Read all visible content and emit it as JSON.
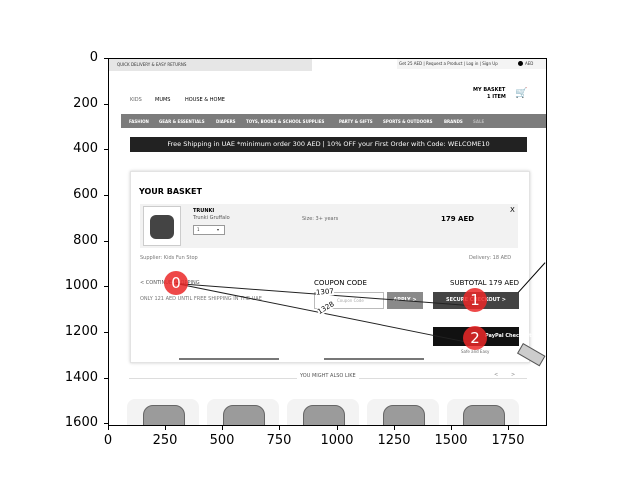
{
  "axes": {
    "y_ticks": [
      "0",
      "200",
      "400",
      "600",
      "800",
      "1000",
      "1200",
      "1400",
      "1600"
    ],
    "x_ticks": [
      "0",
      "250",
      "500",
      "750",
      "1000",
      "1250",
      "1500",
      "1750"
    ]
  },
  "page": {
    "top_bar": "QUICK DELIVERY & EASY RETURNS",
    "top_links": "Get 25 AED | Request a Product | Log in | Sign Up",
    "currency": "AED",
    "main_nav": [
      "KIDS",
      "MUMS",
      "HOUSE & HOME"
    ],
    "basket_label": "MY BASKET",
    "basket_count": "1 ITEM",
    "categories": [
      "FASHION",
      "GEAR & ESSENTIALS",
      "DIAPERS",
      "TOYS, BOOKS & SCHOOL SUPPLIES",
      "PARTY & GIFTS",
      "SPORTS & OUTDOORS",
      "BRANDS",
      "SALE"
    ],
    "promo_banner": "Free Shipping in UAE *minimum order 300 AED | 10% OFF your First Order with Code: WELCOME10",
    "basket_title": "YOUR BASKET",
    "item": {
      "brand": "TRUNKI",
      "name": "Trunki Gruffalo",
      "size": "Size: 3+ years",
      "price": "179 AED",
      "qty": "1",
      "remove": "X",
      "supplier": "Supplier: Kids Fun Stop",
      "delivery": "Delivery: 18 AED"
    },
    "continue_shopping": "< CONTINUE SHOPPING",
    "free_shipping_note": "ONLY 121 AED UNTIL FREE SHIPPING IN THE UAE",
    "coupon_label": "COUPON CODE",
    "coupon_placeholder": "Coupon Code",
    "apply": "APPLY >",
    "subtotal": "SUBTOTAL 179 AED",
    "secure_checkout": "SECURE CHECKOUT >",
    "paypal": "PayPal Checkout",
    "paypal_sub": "Safe and Easy",
    "might_like": "YOU MIGHT ALSO LIKE",
    "carousel_prev": "<",
    "carousel_next": ">"
  },
  "annotations": {
    "markers": [
      "0",
      "1",
      "2"
    ],
    "trace_labels": [
      "1307",
      "1328"
    ],
    "colors": {
      "marker": "#eb2828",
      "line": "#222222"
    }
  }
}
